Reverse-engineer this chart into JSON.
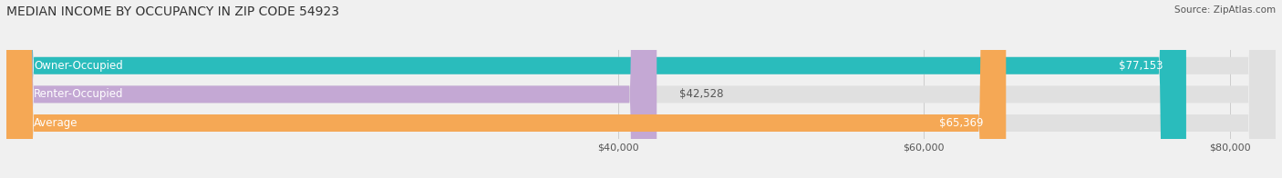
{
  "title": "MEDIAN INCOME BY OCCUPANCY IN ZIP CODE 54923",
  "source": "Source: ZipAtlas.com",
  "categories": [
    "Owner-Occupied",
    "Renter-Occupied",
    "Average"
  ],
  "values": [
    77153,
    42528,
    65369
  ],
  "bar_colors": [
    "#2abcbc",
    "#c4a8d4",
    "#f5a855"
  ],
  "bar_labels": [
    "$77,153",
    "$42,528",
    "$65,369"
  ],
  "label_inside": [
    true,
    false,
    true
  ],
  "xmin": 0,
  "xmax": 83000,
  "xticks": [
    40000,
    60000,
    80000
  ],
  "xticklabels": [
    "$40,000",
    "$60,000",
    "$80,000"
  ],
  "bar_height": 0.6,
  "background_color": "#f0f0f0",
  "bar_background_color": "#e0e0e0",
  "title_fontsize": 10,
  "label_fontsize": 8.5,
  "tick_fontsize": 8,
  "source_fontsize": 7.5
}
